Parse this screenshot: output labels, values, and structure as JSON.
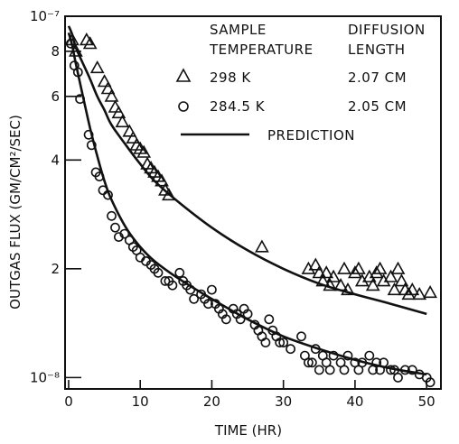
{
  "chart_data": {
    "type": "scatter",
    "xlabel": "TIME (HR)",
    "ylabel": "OUTGAS FLUX (GM/CM²/SEC)",
    "yscale": "log",
    "xlim": [
      -0.5,
      52
    ],
    "ylim": [
      9.3e-09,
      1e-07
    ],
    "x_ticks": [
      0,
      10,
      20,
      30,
      40,
      50
    ],
    "x_tick_labels": [
      "0",
      "10",
      "20",
      "30",
      "40",
      "50"
    ],
    "y_ticks": [
      1e-08,
      2e-08,
      4e-08,
      6e-08,
      8e-08,
      1e-07
    ],
    "y_tick_labels": [
      "10⁻⁸",
      "2",
      "4",
      "6",
      "8",
      "10⁻⁷"
    ],
    "grid": false,
    "legend_header": {
      "col1_line1": "SAMPLE",
      "col1_line2": "TEMPERATURE",
      "col2_line1": "DIFFUSION",
      "col2_line2": "LENGTH"
    },
    "legend": [
      {
        "marker": "triangle",
        "label": "298 K",
        "diffusion": "2.07 CM"
      },
      {
        "marker": "circle",
        "label": "284.5 K",
        "diffusion": "2.05 CM"
      },
      {
        "marker": "line",
        "label": "PREDICTION"
      }
    ],
    "series": [
      {
        "marker": "triangle",
        "points": [
          [
            0.5,
            8.6e-08
          ],
          [
            1.0,
            8e-08
          ],
          [
            2.5,
            8.6e-08
          ],
          [
            3.0,
            8.4e-08
          ],
          [
            4.0,
            7.2e-08
          ],
          [
            5.0,
            6.6e-08
          ],
          [
            5.5,
            6.3e-08
          ],
          [
            6.0,
            6e-08
          ],
          [
            6.5,
            5.6e-08
          ],
          [
            7.0,
            5.4e-08
          ],
          [
            7.5,
            5.1e-08
          ],
          [
            8.5,
            4.8e-08
          ],
          [
            9.0,
            4.6e-08
          ],
          [
            9.5,
            4.4e-08
          ],
          [
            10.0,
            4.3e-08
          ],
          [
            10.5,
            4.2e-08
          ],
          [
            11.0,
            3.9e-08
          ],
          [
            11.5,
            3.8e-08
          ],
          [
            12.0,
            3.7e-08
          ],
          [
            12.5,
            3.6e-08
          ],
          [
            13.0,
            3.5e-08
          ],
          [
            13.5,
            3.3e-08
          ],
          [
            14.0,
            3.2e-08
          ],
          [
            27.0,
            2.3e-08
          ],
          [
            33.5,
            2e-08
          ],
          [
            34.5,
            2.05e-08
          ],
          [
            35.0,
            1.95e-08
          ],
          [
            35.5,
            1.85e-08
          ],
          [
            36.0,
            1.95e-08
          ],
          [
            36.5,
            1.8e-08
          ],
          [
            37.0,
            1.9e-08
          ],
          [
            38.0,
            1.8e-08
          ],
          [
            38.5,
            2e-08
          ],
          [
            39.0,
            1.75e-08
          ],
          [
            40.0,
            1.95e-08
          ],
          [
            40.5,
            2e-08
          ],
          [
            41.0,
            1.85e-08
          ],
          [
            42.0,
            1.9e-08
          ],
          [
            42.5,
            1.8e-08
          ],
          [
            43.0,
            1.95e-08
          ],
          [
            43.5,
            2e-08
          ],
          [
            44.0,
            1.85e-08
          ],
          [
            45.0,
            1.9e-08
          ],
          [
            45.5,
            1.75e-08
          ],
          [
            46.0,
            2e-08
          ],
          [
            46.5,
            1.85e-08
          ],
          [
            47.0,
            1.75e-08
          ],
          [
            47.5,
            1.7e-08
          ],
          [
            48.0,
            1.75e-08
          ],
          [
            49.0,
            1.7e-08
          ],
          [
            50.5,
            1.72e-08
          ]
        ]
      },
      {
        "marker": "circle",
        "points": [
          [
            0.3,
            8.4e-08
          ],
          [
            0.8,
            7.3e-08
          ],
          [
            1.3,
            7e-08
          ],
          [
            1.6,
            5.9e-08
          ],
          [
            2.8,
            4.7e-08
          ],
          [
            3.2,
            4.4e-08
          ],
          [
            3.8,
            3.7e-08
          ],
          [
            4.3,
            3.6e-08
          ],
          [
            4.8,
            3.3e-08
          ],
          [
            5.5,
            3.2e-08
          ],
          [
            6.0,
            2.8e-08
          ],
          [
            6.5,
            2.6e-08
          ],
          [
            7.0,
            2.45e-08
          ],
          [
            7.8,
            2.5e-08
          ],
          [
            8.5,
            2.4e-08
          ],
          [
            9.0,
            2.3e-08
          ],
          [
            9.5,
            2.25e-08
          ],
          [
            10.0,
            2.15e-08
          ],
          [
            10.8,
            2.1e-08
          ],
          [
            11.5,
            2.05e-08
          ],
          [
            12.0,
            2e-08
          ],
          [
            12.5,
            1.95e-08
          ],
          [
            13.5,
            1.85e-08
          ],
          [
            14.0,
            1.85e-08
          ],
          [
            14.5,
            1.8e-08
          ],
          [
            15.5,
            1.95e-08
          ],
          [
            16.0,
            1.85e-08
          ],
          [
            16.5,
            1.8e-08
          ],
          [
            17.0,
            1.75e-08
          ],
          [
            17.5,
            1.65e-08
          ],
          [
            18.5,
            1.7e-08
          ],
          [
            19.0,
            1.65e-08
          ],
          [
            19.5,
            1.6e-08
          ],
          [
            20.0,
            1.75e-08
          ],
          [
            20.5,
            1.6e-08
          ],
          [
            21.0,
            1.55e-08
          ],
          [
            21.5,
            1.5e-08
          ],
          [
            22.0,
            1.45e-08
          ],
          [
            23.0,
            1.55e-08
          ],
          [
            23.5,
            1.5e-08
          ],
          [
            24.0,
            1.45e-08
          ],
          [
            24.5,
            1.55e-08
          ],
          [
            25.0,
            1.5e-08
          ],
          [
            26.0,
            1.4e-08
          ],
          [
            26.5,
            1.35e-08
          ],
          [
            27.0,
            1.3e-08
          ],
          [
            27.5,
            1.25e-08
          ],
          [
            28.0,
            1.45e-08
          ],
          [
            28.5,
            1.35e-08
          ],
          [
            29.0,
            1.3e-08
          ],
          [
            29.5,
            1.25e-08
          ],
          [
            30.0,
            1.25e-08
          ],
          [
            31.0,
            1.2e-08
          ],
          [
            32.5,
            1.3e-08
          ],
          [
            33.0,
            1.15e-08
          ],
          [
            33.5,
            1.1e-08
          ],
          [
            34.0,
            1.1e-08
          ],
          [
            34.5,
            1.2e-08
          ],
          [
            35.0,
            1.05e-08
          ],
          [
            35.5,
            1.15e-08
          ],
          [
            36.0,
            1.1e-08
          ],
          [
            36.5,
            1.05e-08
          ],
          [
            37.0,
            1.15e-08
          ],
          [
            38.0,
            1.1e-08
          ],
          [
            38.5,
            1.05e-08
          ],
          [
            39.0,
            1.15e-08
          ],
          [
            40.0,
            1.1e-08
          ],
          [
            40.5,
            1.05e-08
          ],
          [
            41.0,
            1.1e-08
          ],
          [
            42.0,
            1.15e-08
          ],
          [
            42.5,
            1.05e-08
          ],
          [
            43.0,
            1.1e-08
          ],
          [
            43.5,
            1.05e-08
          ],
          [
            44.0,
            1.1e-08
          ],
          [
            45.0,
            1.05e-08
          ],
          [
            45.5,
            1.05e-08
          ],
          [
            46.0,
            1e-08
          ],
          [
            47.0,
            1.05e-08
          ],
          [
            48.0,
            1.05e-08
          ],
          [
            49.0,
            1.02e-08
          ],
          [
            50.0,
            1e-08
          ],
          [
            50.5,
            9.7e-09
          ]
        ]
      }
    ],
    "curves": [
      {
        "name": "prediction-298",
        "points": [
          [
            0.0,
            9.4e-08
          ],
          [
            0.5,
            8.9e-08
          ],
          [
            1.0,
            8.2e-08
          ],
          [
            2.0,
            7.4e-08
          ],
          [
            3.0,
            6.7e-08
          ],
          [
            4.0,
            6e-08
          ],
          [
            5.0,
            5.5e-08
          ],
          [
            6.0,
            5e-08
          ],
          [
            8.0,
            4.4e-08
          ],
          [
            10.0,
            3.9e-08
          ],
          [
            12.0,
            3.5e-08
          ],
          [
            15.0,
            3.1e-08
          ],
          [
            20.0,
            2.6e-08
          ],
          [
            25.0,
            2.25e-08
          ],
          [
            30.0,
            2e-08
          ],
          [
            35.0,
            1.82e-08
          ],
          [
            40.0,
            1.7e-08
          ],
          [
            45.0,
            1.6e-08
          ],
          [
            50.0,
            1.5e-08
          ]
        ]
      },
      {
        "name": "prediction-284.5",
        "points": [
          [
            0.0,
            9e-08
          ],
          [
            0.5,
            8.3e-08
          ],
          [
            1.0,
            7.4e-08
          ],
          [
            2.0,
            6e-08
          ],
          [
            3.0,
            4.9e-08
          ],
          [
            4.0,
            4.1e-08
          ],
          [
            5.0,
            3.5e-08
          ],
          [
            6.0,
            3.1e-08
          ],
          [
            8.0,
            2.6e-08
          ],
          [
            10.0,
            2.3e-08
          ],
          [
            12.0,
            2.1e-08
          ],
          [
            15.0,
            1.9e-08
          ],
          [
            20.0,
            1.65e-08
          ],
          [
            25.0,
            1.45e-08
          ],
          [
            30.0,
            1.3e-08
          ],
          [
            35.0,
            1.2e-08
          ],
          [
            40.0,
            1.12e-08
          ],
          [
            45.0,
            1.06e-08
          ],
          [
            50.0,
            1.02e-08
          ]
        ]
      }
    ]
  }
}
